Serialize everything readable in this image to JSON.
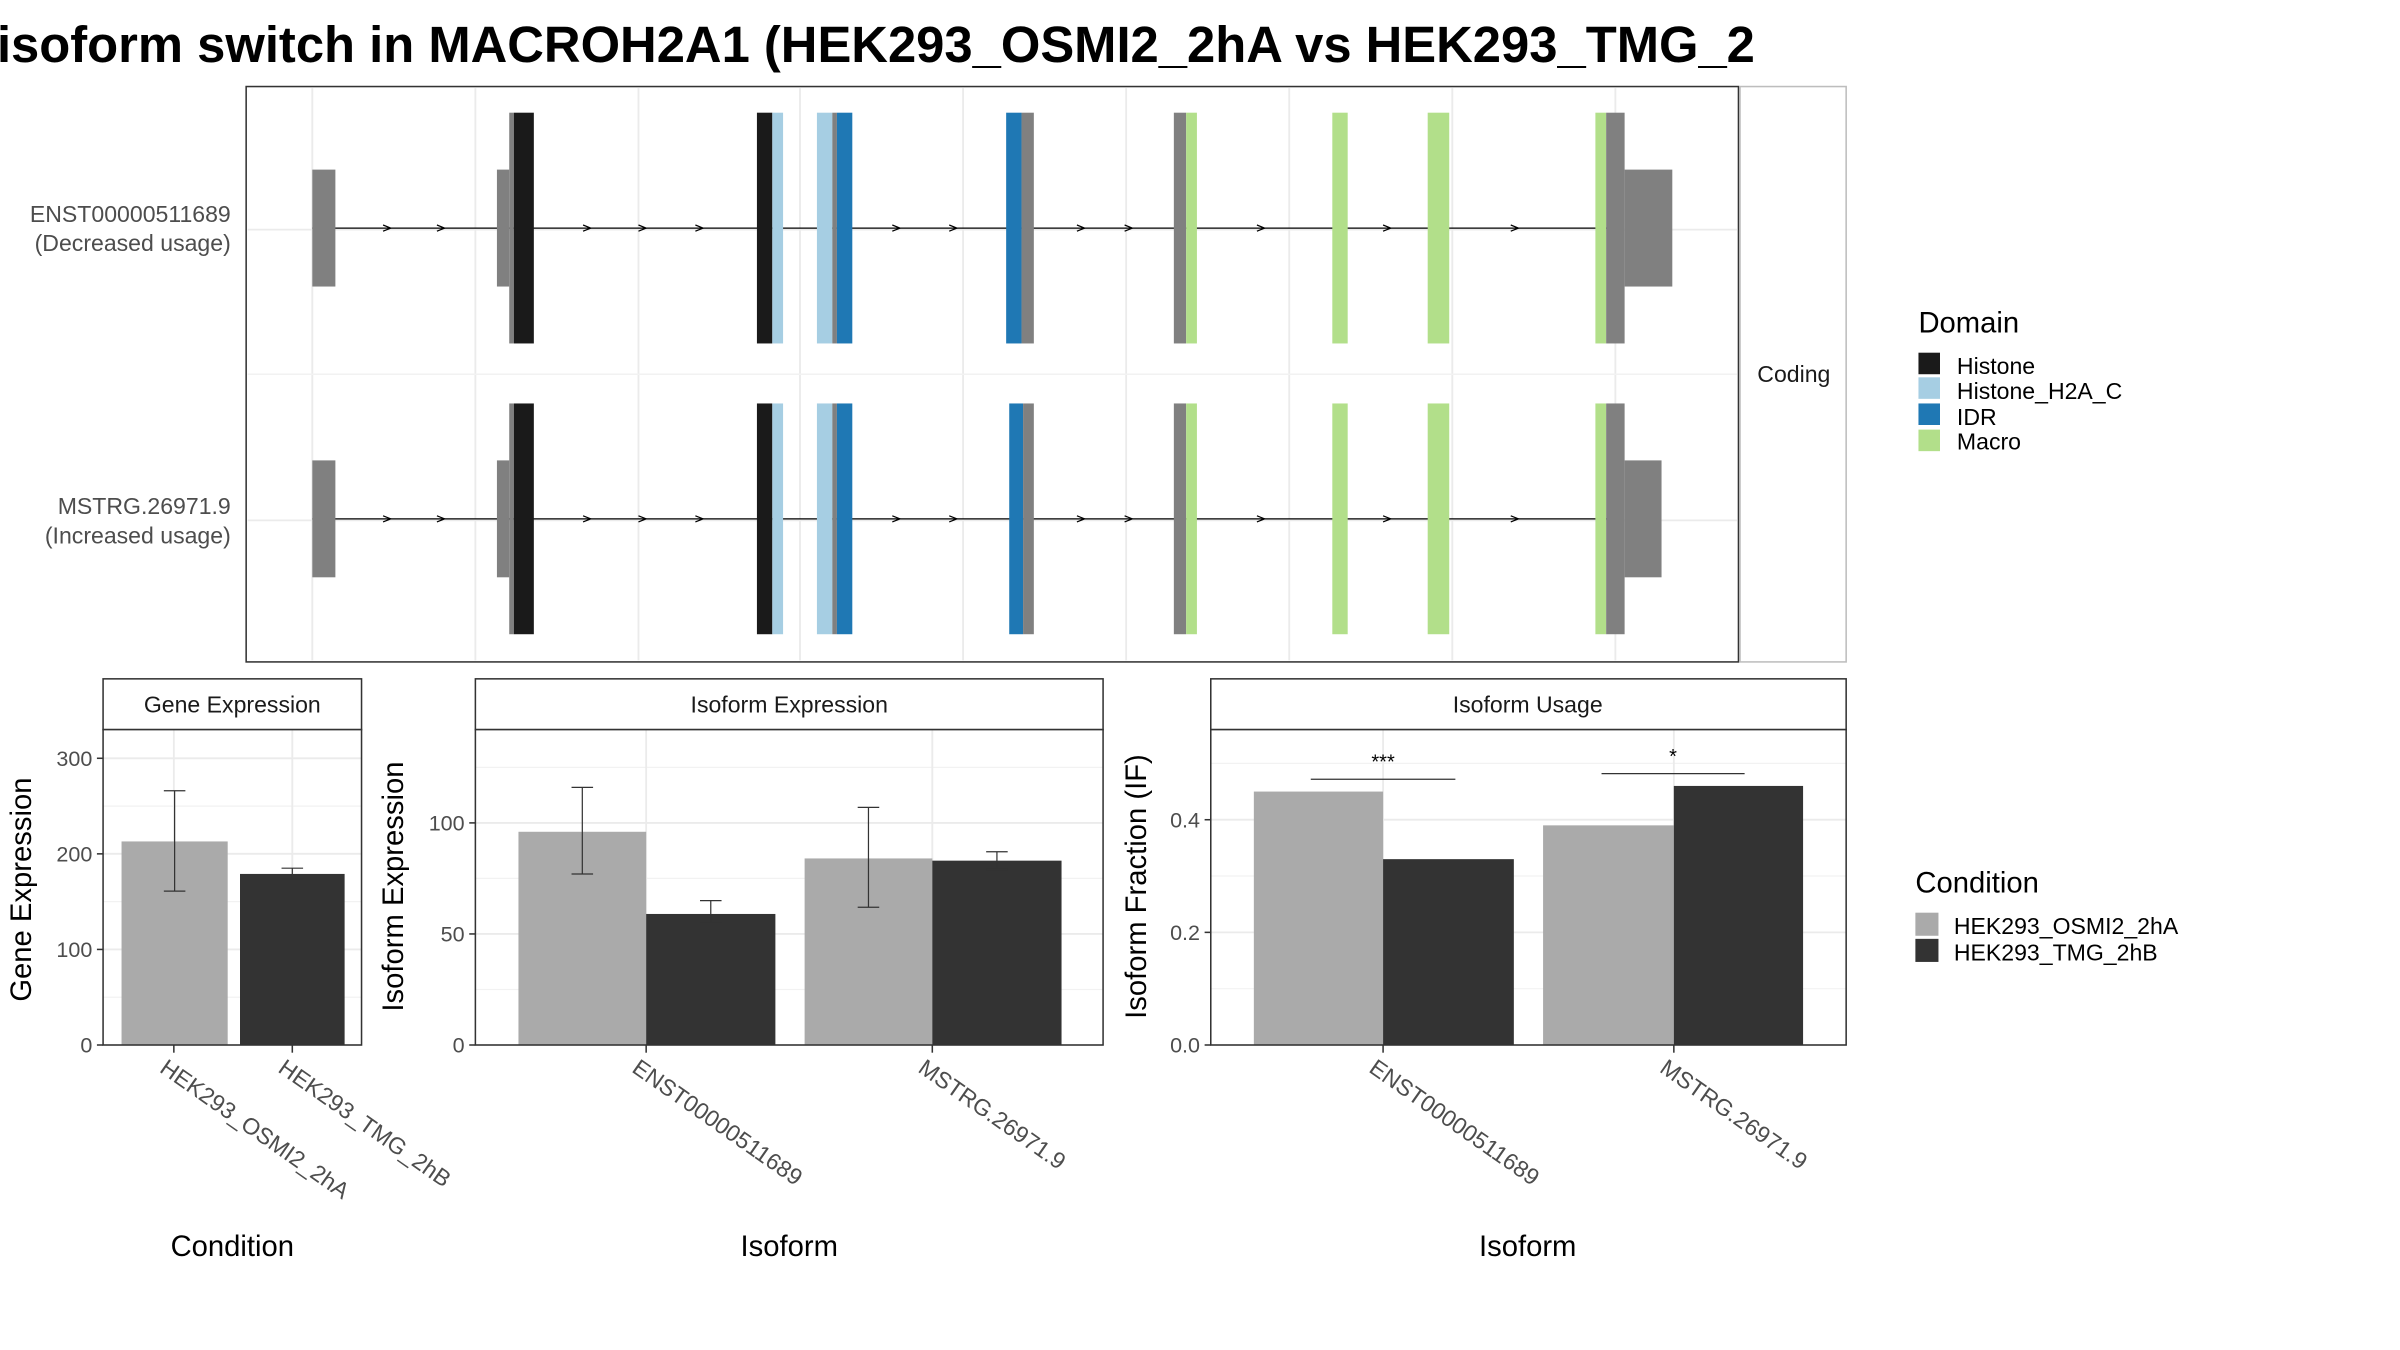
{
  "title": "isoform switch in MACROH2A1 (HEK293_OSMI2_2hA vs HEK293_TMG_2",
  "colors": {
    "histone": "#1a1a1a",
    "histone_h2a_c": "#a6cee3",
    "idr": "#1f78b4",
    "macro": "#b2df8a",
    "noncoding_exon": "#808080",
    "cond_a": "#aaaaaa",
    "cond_b": "#333333"
  },
  "chart_data": [
    {
      "type": "gene-structure",
      "facet_label": "Coding",
      "transcripts": [
        {
          "id": "ENST00000511689",
          "note": "(Decreased usage)",
          "idr_variant": 1
        },
        {
          "id": "MSTRG.26971.9",
          "note": "(Increased usage)",
          "idr_variant": 2
        }
      ],
      "legend": {
        "title": "Domain",
        "items": [
          {
            "label": "Histone",
            "color": "#1a1a1a"
          },
          {
            "label": "Histone_H2A_C",
            "color": "#a6cee3"
          },
          {
            "label": "IDR",
            "color": "#1f78b4"
          },
          {
            "label": "Macro",
            "color": "#b2df8a"
          }
        ]
      }
    },
    {
      "type": "bar",
      "title": "Gene Expression",
      "xlabel": "Condition",
      "ylabel": "Gene Expression",
      "ylim": [
        0,
        330
      ],
      "yticks": [
        0,
        100,
        200,
        300
      ],
      "categories": [
        "HEK293_OSMI2_2hA",
        "HEK293_TMG_2hB"
      ],
      "values": [
        213,
        179
      ],
      "error": [
        [
          161,
          266
        ],
        [
          174,
          185
        ]
      ]
    },
    {
      "type": "bar",
      "title": "Isoform Expression",
      "xlabel": "Isoform",
      "ylabel": "Isoform Expression",
      "ylim": [
        0,
        142
      ],
      "yticks": [
        0,
        50,
        100
      ],
      "categories": [
        "ENST00000511689",
        "MSTRG.26971.9"
      ],
      "series": [
        {
          "name": "HEK293_OSMI2_2hA",
          "values": [
            96,
            84
          ],
          "error": [
            [
              77,
              116
            ],
            [
              62,
              107
            ]
          ]
        },
        {
          "name": "HEK293_TMG_2hB",
          "values": [
            59,
            83
          ],
          "error": [
            [
              55,
              65
            ],
            [
              79,
              87
            ]
          ]
        }
      ]
    },
    {
      "type": "bar",
      "title": "Isoform Usage",
      "xlabel": "Isoform",
      "ylabel": "Isoform Fraction (IF)",
      "ylim": [
        0,
        0.56
      ],
      "yticks": [
        "0.0",
        "0.2",
        "0.4"
      ],
      "categories": [
        "ENST00000511689",
        "MSTRG.26971.9"
      ],
      "series": [
        {
          "name": "HEK293_OSMI2_2hA",
          "values": [
            0.45,
            0.39
          ]
        },
        {
          "name": "HEK293_TMG_2hB",
          "values": [
            0.33,
            0.46
          ]
        }
      ],
      "significance": [
        "***",
        "*"
      ]
    }
  ],
  "condition_legend": {
    "title": "Condition",
    "items": [
      {
        "label": "HEK293_OSMI2_2hA",
        "color": "#aaaaaa"
      },
      {
        "label": "HEK293_TMG_2hB",
        "color": "#333333"
      }
    ]
  }
}
